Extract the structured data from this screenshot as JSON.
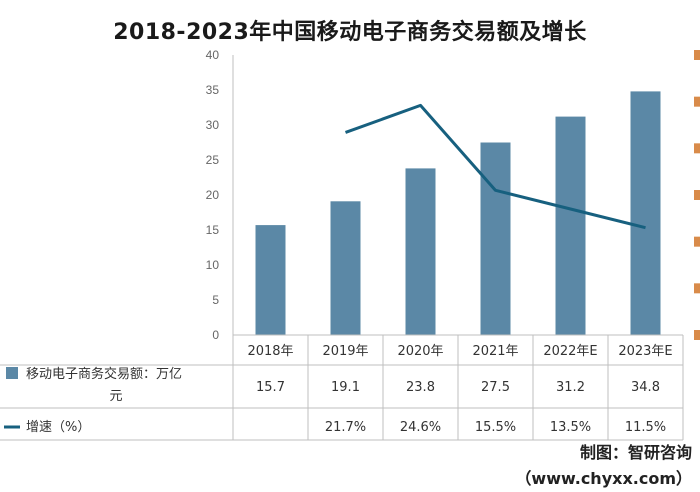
{
  "title": "2018-2023年中国移动电子商务交易额及增长",
  "credit": "制图：智研咨询（www.chyxx.com）",
  "colors": {
    "bar": "#5b88a6",
    "line": "#17607f",
    "right_axis": "#d98b4a",
    "grid": "#d9d9d9"
  },
  "chart_data": {
    "type": "bar",
    "categories": [
      "2018年",
      "2019年",
      "2020年",
      "2021年",
      "2022年E",
      "2023年E"
    ],
    "ylim": [
      0,
      40
    ],
    "yticks": [
      "0",
      "5",
      "10",
      "15",
      "20",
      "25",
      "30",
      "35",
      "40"
    ],
    "series": [
      {
        "name": "移动电子商务交易额：万亿元",
        "type": "bar",
        "values": [
          15.7,
          19.1,
          23.8,
          27.5,
          31.2,
          34.8
        ],
        "labels": [
          "15.7",
          "19.1",
          "23.8",
          "27.5",
          "31.2",
          "34.8"
        ]
      },
      {
        "name": "增速（%）",
        "type": "line",
        "values": [
          null,
          21.7,
          24.6,
          15.5,
          13.5,
          11.5
        ],
        "labels": [
          "",
          "21.7%",
          "24.6%",
          "15.5%",
          "13.5%",
          "11.5%"
        ]
      }
    ],
    "secondary_ylim": [
      0,
      30
    ],
    "grid": false,
    "legend": "table-below"
  }
}
